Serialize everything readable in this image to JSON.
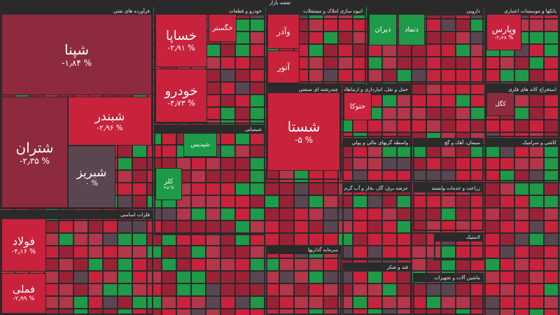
{
  "header": {
    "title": "نقشه بازار"
  },
  "sectors": [
    {
      "title": "فرآورده های نفتی",
      "tiles": [
        {
          "name": "شپنا",
          "change": "-۱٫۸۴ %"
        },
        {
          "name": "شتران",
          "change": "-۲٫۳۵ %"
        },
        {
          "name": "شبندر",
          "change": "-۲٫۹۶ %"
        },
        {
          "name": "شبریز",
          "change": "۰ %"
        }
      ]
    },
    {
      "title": "خودرو و قطعات",
      "tiles": [
        {
          "name": "خساپا",
          "change": "-۲٫۹۱ %"
        },
        {
          "name": "خودرو",
          "change": "-۴٫۷۳ %"
        },
        {
          "name": "خگستر"
        }
      ]
    },
    {
      "title": "انبوه سازی املاک و مستغلات",
      "tiles": [
        {
          "name": "وآذر"
        },
        {
          "name": "آتور"
        }
      ]
    },
    {
      "title": "دارویی",
      "tiles": [
        {
          "name": "دیران"
        },
        {
          "name": "دتماد"
        }
      ]
    },
    {
      "title": "بانکها و موسسات اعتباری",
      "tiles": [
        {
          "name": "وپارس",
          "change": "-۲٫۶۸ %"
        }
      ]
    },
    {
      "title": "شیمیایی",
      "tiles": [
        {
          "name": "کلر",
          "change": "+۵ %"
        },
        {
          "name": "شپدیس"
        }
      ]
    },
    {
      "title": "چندرشته ای صنعتی",
      "tiles": [
        {
          "name": "شستا",
          "change": "-۵ %"
        }
      ]
    },
    {
      "title": "حمل و نقل، انبارداری و ارتباطات",
      "tiles": [
        {
          "name": "حتوکا"
        }
      ]
    },
    {
      "title": "استخراج کانه های فلزی",
      "tiles": [
        {
          "name": "کگل"
        }
      ]
    },
    {
      "title": "فلزات اساسی",
      "tiles": [
        {
          "name": "فولاد",
          "change": "-۴٫۱۶ %"
        },
        {
          "name": "فملی",
          "change": "-۲٫۹۹ %"
        }
      ]
    },
    {
      "title": "واسطه گریهای مالی و پولی",
      "tiles": []
    },
    {
      "title": "سیمان، آهک و گچ",
      "tiles": []
    },
    {
      "title": "کاشی و سرامیک",
      "tiles": []
    },
    {
      "title": "زراعت و خدمات وابسته",
      "tiles": []
    },
    {
      "title": "عرضه برق، گاز، بخار و آب گرم",
      "tiles": []
    },
    {
      "title": "سرمایه گذاریها",
      "tiles": []
    },
    {
      "title": "قند و شکر",
      "tiles": []
    },
    {
      "title": "ماشین آلات و تجهیزات",
      "tiles": []
    },
    {
      "title": "لاستیک",
      "tiles": []
    }
  ]
}
